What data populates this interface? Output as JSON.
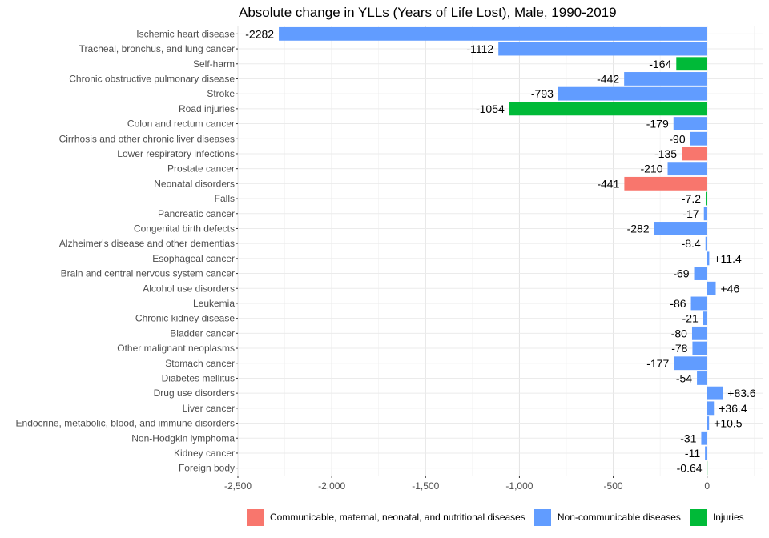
{
  "chart_data": {
    "type": "bar",
    "orientation": "horizontal",
    "title": "Absolute change in YLLs (Years of Life Lost), Male, 1990-2019",
    "xlabel": "",
    "ylabel": "",
    "xlim": [
      -2500,
      300
    ],
    "grid": true,
    "legend_position": "bottom",
    "x_ticks": [
      -2500,
      -2000,
      -1500,
      -1000,
      -500,
      0
    ],
    "x_tick_labels": [
      "-2,500",
      "-2,000",
      "-1,500",
      "-1,000",
      "-500",
      "0"
    ],
    "colors": {
      "Communicable, maternal, neonatal, and nutritional diseases": "#F8766D",
      "Non-communicable diseases": "#619CFF",
      "Injuries": "#00BA38"
    },
    "legend": [
      "Communicable, maternal, neonatal, and nutritional diseases",
      "Non-communicable diseases",
      "Injuries"
    ],
    "bars": [
      {
        "category": "Ischemic heart disease",
        "value": -2282,
        "label": "-2282",
        "group": "Non-communicable diseases"
      },
      {
        "category": "Tracheal, bronchus, and lung cancer",
        "value": -1112,
        "label": "-1112",
        "group": "Non-communicable diseases"
      },
      {
        "category": "Self-harm",
        "value": -164,
        "label": "-164",
        "group": "Injuries"
      },
      {
        "category": "Chronic obstructive pulmonary disease",
        "value": -442,
        "label": "-442",
        "group": "Non-communicable diseases"
      },
      {
        "category": "Stroke",
        "value": -793,
        "label": "-793",
        "group": "Non-communicable diseases"
      },
      {
        "category": "Road injuries",
        "value": -1054,
        "label": "-1054",
        "group": "Injuries"
      },
      {
        "category": "Colon and rectum cancer",
        "value": -179,
        "label": "-179",
        "group": "Non-communicable diseases"
      },
      {
        "category": "Cirrhosis and other chronic liver diseases",
        "value": -90,
        "label": "-90",
        "group": "Non-communicable diseases"
      },
      {
        "category": "Lower respiratory infections",
        "value": -135,
        "label": "-135",
        "group": "Communicable, maternal, neonatal, and nutritional diseases"
      },
      {
        "category": "Prostate cancer",
        "value": -210,
        "label": "-210",
        "group": "Non-communicable diseases"
      },
      {
        "category": "Neonatal disorders",
        "value": -441,
        "label": "-441",
        "group": "Communicable, maternal, neonatal, and nutritional diseases"
      },
      {
        "category": "Falls",
        "value": -7.2,
        "label": "-7.2",
        "group": "Injuries"
      },
      {
        "category": "Pancreatic cancer",
        "value": -17,
        "label": "-17",
        "group": "Non-communicable diseases"
      },
      {
        "category": "Congenital birth defects",
        "value": -282,
        "label": "-282",
        "group": "Non-communicable diseases"
      },
      {
        "category": "Alzheimer's disease and other dementias",
        "value": -8.4,
        "label": "-8.4",
        "group": "Non-communicable diseases"
      },
      {
        "category": "Esophageal cancer",
        "value": 11.4,
        "label": "+11.4",
        "group": "Non-communicable diseases"
      },
      {
        "category": "Brain and central nervous system cancer",
        "value": -69,
        "label": "-69",
        "group": "Non-communicable diseases"
      },
      {
        "category": "Alcohol use disorders",
        "value": 46,
        "label": "+46",
        "group": "Non-communicable diseases"
      },
      {
        "category": "Leukemia",
        "value": -86,
        "label": "-86",
        "group": "Non-communicable diseases"
      },
      {
        "category": "Chronic kidney disease",
        "value": -21,
        "label": "-21",
        "group": "Non-communicable diseases"
      },
      {
        "category": "Bladder cancer",
        "value": -80,
        "label": "-80",
        "group": "Non-communicable diseases"
      },
      {
        "category": "Other malignant neoplasms",
        "value": -78,
        "label": "-78",
        "group": "Non-communicable diseases"
      },
      {
        "category": "Stomach cancer",
        "value": -177,
        "label": "-177",
        "group": "Non-communicable diseases"
      },
      {
        "category": "Diabetes mellitus",
        "value": -54,
        "label": "-54",
        "group": "Non-communicable diseases"
      },
      {
        "category": "Drug use disorders",
        "value": 83.6,
        "label": "+83.6",
        "group": "Non-communicable diseases"
      },
      {
        "category": "Liver cancer",
        "value": 36.4,
        "label": "+36.4",
        "group": "Non-communicable diseases"
      },
      {
        "category": "Endocrine, metabolic, blood, and immune disorders",
        "value": 10.5,
        "label": "+10.5",
        "group": "Non-communicable diseases"
      },
      {
        "category": "Non-Hodgkin lymphoma",
        "value": -31,
        "label": "-31",
        "group": "Non-communicable diseases"
      },
      {
        "category": "Kidney cancer",
        "value": -11,
        "label": "-11",
        "group": "Non-communicable diseases"
      },
      {
        "category": "Foreign body",
        "value": -0.64,
        "label": "-0.64",
        "group": "Injuries"
      }
    ]
  }
}
